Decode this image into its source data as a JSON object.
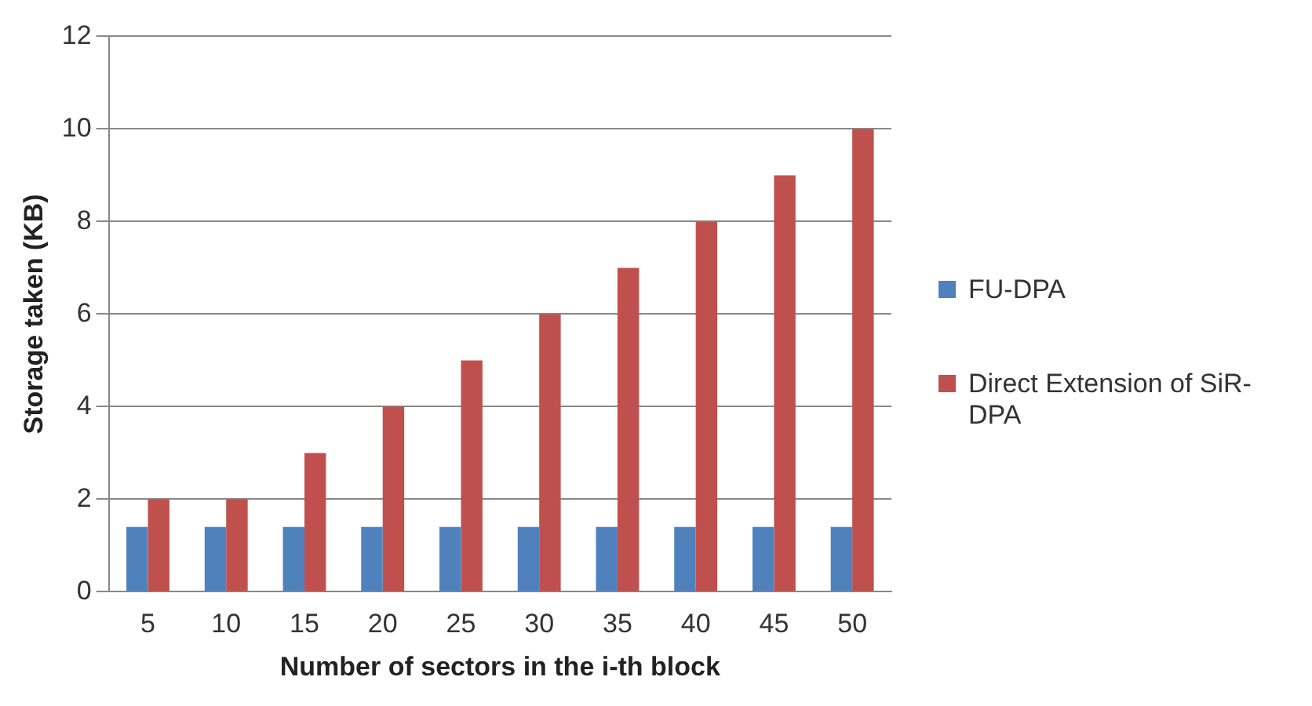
{
  "chart_data": {
    "type": "bar",
    "xlabel": "Number of sectors in the i-th block",
    "ylabel": "Storage taken (KB)",
    "categories": [
      "5",
      "10",
      "15",
      "20",
      "25",
      "30",
      "35",
      "40",
      "45",
      "50"
    ],
    "series": [
      {
        "name": "FU-DPA",
        "color": "#4f81bd",
        "values": [
          1.4,
          1.4,
          1.4,
          1.4,
          1.4,
          1.4,
          1.4,
          1.4,
          1.4,
          1.4
        ]
      },
      {
        "name": "Direct Extension of SiR-DPA",
        "color": "#c0504d",
        "values": [
          2,
          2,
          3,
          4,
          5,
          6,
          7,
          8,
          9,
          10
        ]
      }
    ],
    "ylim": [
      0,
      12
    ],
    "yticks": [
      0,
      2,
      4,
      6,
      8,
      10,
      12
    ],
    "grid": "y",
    "legend": "right"
  }
}
